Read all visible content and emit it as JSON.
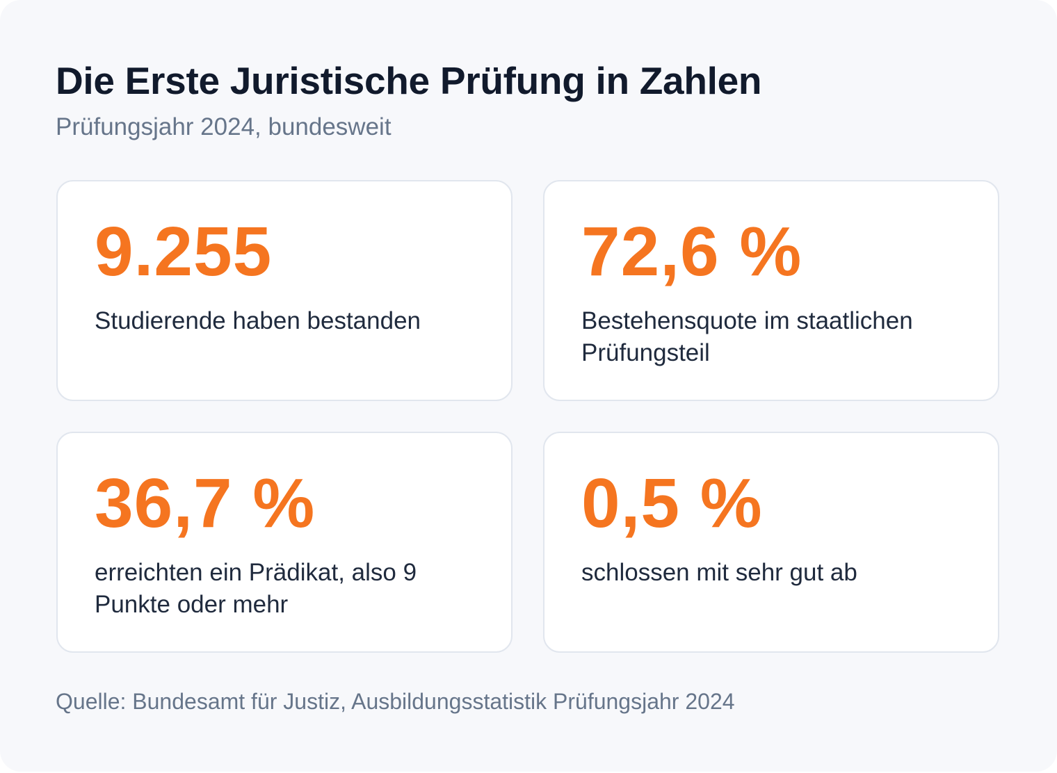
{
  "header": {
    "title": "Die Erste Juristische Prüfung in Zahlen",
    "subtitle": "Prüfungsjahr 2024, bundesweit"
  },
  "stats": [
    {
      "value": "9.255",
      "label": "Studierende haben bestanden"
    },
    {
      "value": "72,6 %",
      "label": "Bestehensquote im staatlichen Prüfungsteil"
    },
    {
      "value": "36,7 %",
      "label": "erreichten ein Prädikat, also 9 Punkte oder mehr"
    },
    {
      "value": "0,5 %",
      "label": "schlossen mit sehr gut ab"
    }
  ],
  "footer": {
    "source": "Quelle: Bundesamt für Justiz, Ausbildungsstatistik Prüfungsjahr 2024"
  },
  "colors": {
    "accent": "#f57520",
    "title": "#111a2c",
    "muted": "#66758a",
    "text": "#1f2a3d",
    "card_border": "#e1e6ee",
    "background": "#f7f8fb"
  }
}
